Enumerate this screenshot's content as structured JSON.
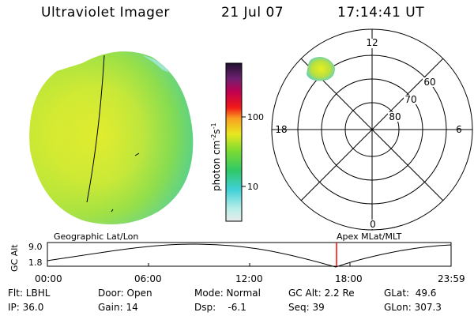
{
  "header": {
    "title": "Ultraviolet Imager",
    "date": "21 Jul 07",
    "time": "17:14:41 UT"
  },
  "colorbar": {
    "label_main": "photon cm",
    "label_sup1": "-2",
    "label_mid": "s",
    "label_sup2": "-1",
    "ticks": [
      "100",
      "10"
    ]
  },
  "polar": {
    "mlt_labels": [
      "12",
      "18",
      "6",
      "0"
    ],
    "lat_labels": [
      "60",
      "70",
      "80"
    ]
  },
  "timeline": {
    "left_label": "Geographic Lat/Lon",
    "right_label": "Apex MLat/MLT",
    "axis_title": "GC Alt",
    "y_labels": [
      "9.0",
      "1.8"
    ],
    "x_labels": [
      "00:00",
      "06:00",
      "12:00",
      "18:00",
      "23:59"
    ],
    "marker_color": "#ff0000"
  },
  "info": [
    [
      {
        "text": "Flt: LBHL"
      },
      {
        "text": "Door: Open"
      },
      {
        "text": "Mode: Normal"
      },
      {
        "text": "GC Alt: 2.2 Re"
      },
      {
        "text": "GLat:  49.6"
      }
    ],
    [
      {
        "text": "IP: 36.0"
      },
      {
        "text": "Gain: 14"
      },
      {
        "text": "Dsp:    -6.1"
      },
      {
        "text": "Seq: 39"
      },
      {
        "text": "GLon: 307.3"
      }
    ]
  ]
}
